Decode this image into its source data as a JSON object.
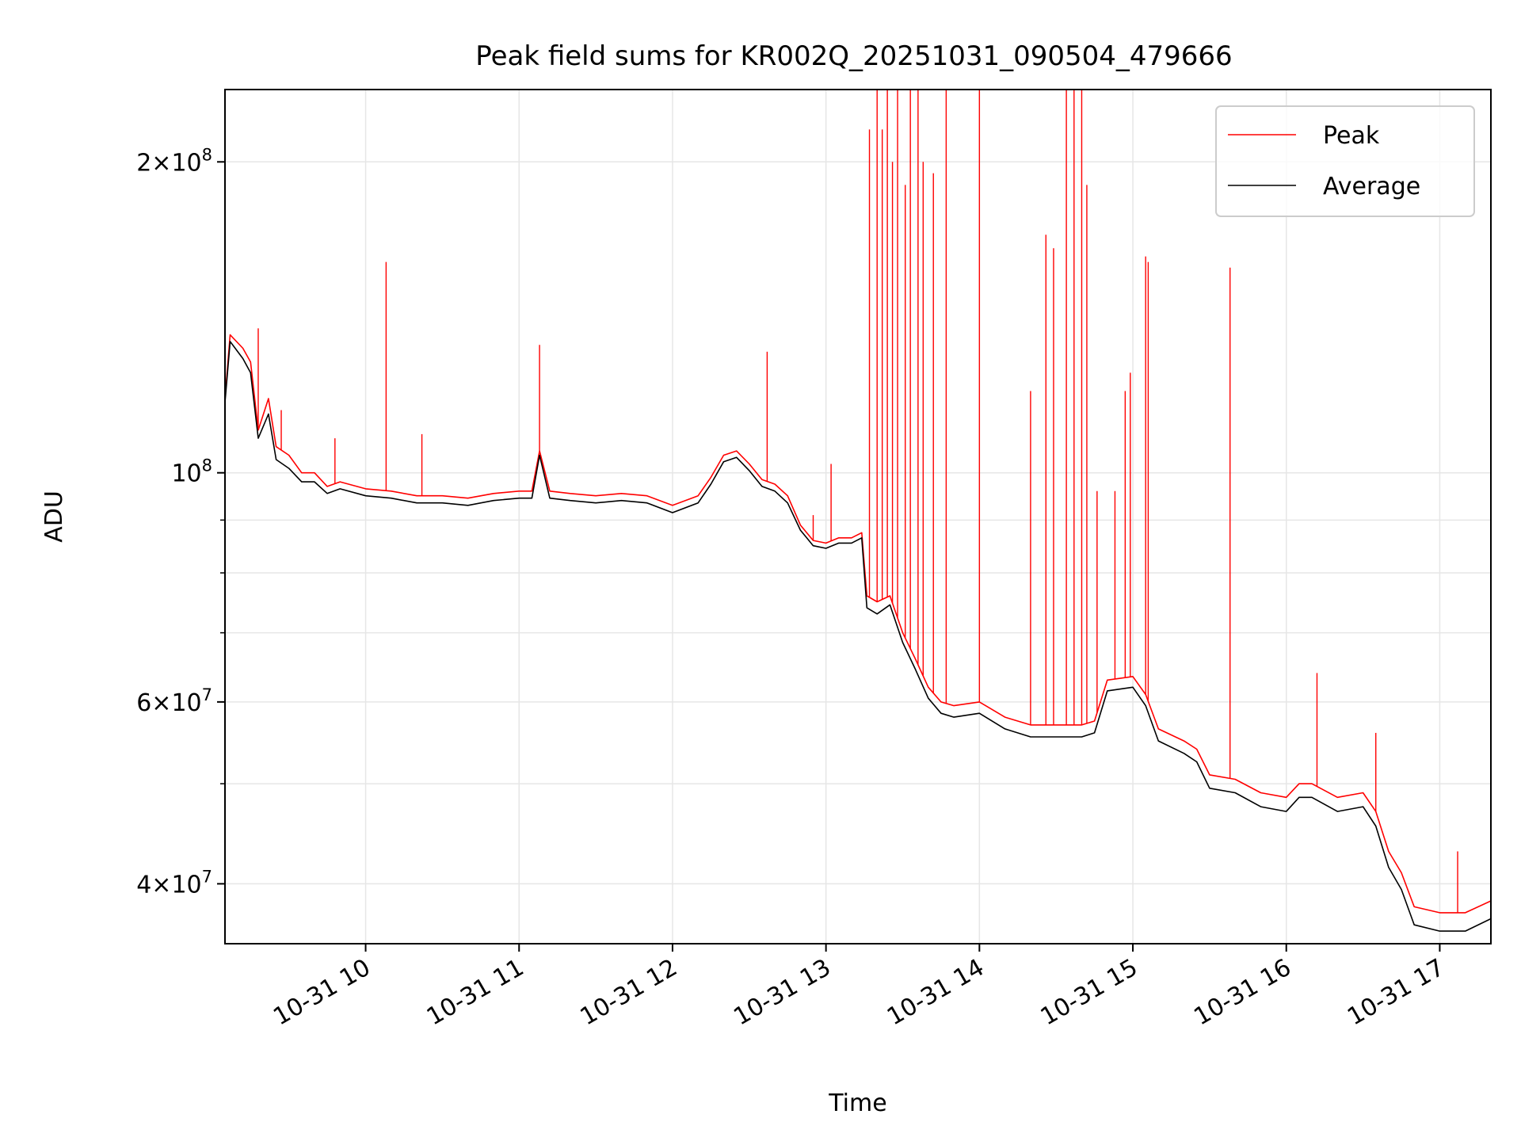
{
  "chart_data": {
    "type": "line",
    "title": "Peak field sums for KR002Q_20251031_090504_479666",
    "xlabel": "Time",
    "ylabel": "ADU",
    "yscale": "log",
    "xlim": [
      "2025-10-31 09:05",
      "2025-10-31 17:20"
    ],
    "ylim": [
      35000000,
      235000000
    ],
    "x_ticks": [
      {
        "t": "2025-10-31 10:00",
        "label": "10-31 10"
      },
      {
        "t": "2025-10-31 11:00",
        "label": "10-31 11"
      },
      {
        "t": "2025-10-31 12:00",
        "label": "10-31 12"
      },
      {
        "t": "2025-10-31 13:00",
        "label": "10-31 13"
      },
      {
        "t": "2025-10-31 14:00",
        "label": "10-31 14"
      },
      {
        "t": "2025-10-31 15:00",
        "label": "10-31 15"
      },
      {
        "t": "2025-10-31 16:00",
        "label": "10-31 16"
      },
      {
        "t": "2025-10-31 17:00",
        "label": "10-31 17"
      }
    ],
    "y_ticks": [
      {
        "value": 40000000,
        "base": "4",
        "times": "×",
        "exp_base": "10",
        "exp": "7"
      },
      {
        "value": 60000000,
        "base": "6",
        "times": "×",
        "exp_base": "10",
        "exp": "7"
      },
      {
        "value": 100000000,
        "base": "",
        "times": "",
        "exp_base": "10",
        "exp": "8"
      },
      {
        "value": 200000000,
        "base": "2",
        "times": "×",
        "exp_base": "10",
        "exp": "8"
      }
    ],
    "y_minor_ticks": [
      50000000,
      70000000,
      80000000,
      90000000
    ],
    "grid": true,
    "legend_position": "top-right",
    "series": [
      {
        "name": "Peak",
        "color": "#ff0000",
        "points": [
          [
            "2025-10-31 09:05",
            118000000
          ],
          [
            "2025-10-31 09:07",
            136000000
          ],
          [
            "2025-10-31 09:12",
            132000000
          ],
          [
            "2025-10-31 09:15",
            128000000
          ],
          [
            "2025-10-31 09:18",
            110000000
          ],
          [
            "2025-10-31 09:22",
            118000000
          ],
          [
            "2025-10-31 09:25",
            106000000
          ],
          [
            "2025-10-31 09:30",
            104000000
          ],
          [
            "2025-10-31 09:35",
            100000000
          ],
          [
            "2025-10-31 09:40",
            100000000
          ],
          [
            "2025-10-31 09:45",
            97000000
          ],
          [
            "2025-10-31 09:50",
            98000000
          ],
          [
            "2025-10-31 10:00",
            96500000
          ],
          [
            "2025-10-31 10:10",
            96000000
          ],
          [
            "2025-10-31 10:20",
            95000000
          ],
          [
            "2025-10-31 10:30",
            95000000
          ],
          [
            "2025-10-31 10:40",
            94500000
          ],
          [
            "2025-10-31 10:50",
            95500000
          ],
          [
            "2025-10-31 11:00",
            96000000
          ],
          [
            "2025-10-31 11:05",
            96000000
          ],
          [
            "2025-10-31 11:08",
            105000000
          ],
          [
            "2025-10-31 11:12",
            96000000
          ],
          [
            "2025-10-31 11:20",
            95500000
          ],
          [
            "2025-10-31 11:30",
            95000000
          ],
          [
            "2025-10-31 11:40",
            95500000
          ],
          [
            "2025-10-31 11:50",
            95000000
          ],
          [
            "2025-10-31 12:00",
            93000000
          ],
          [
            "2025-10-31 12:10",
            95000000
          ],
          [
            "2025-10-31 12:15",
            99000000
          ],
          [
            "2025-10-31 12:20",
            104000000
          ],
          [
            "2025-10-31 12:25",
            105000000
          ],
          [
            "2025-10-31 12:30",
            102000000
          ],
          [
            "2025-10-31 12:35",
            98500000
          ],
          [
            "2025-10-31 12:40",
            97500000
          ],
          [
            "2025-10-31 12:45",
            95000000
          ],
          [
            "2025-10-31 12:50",
            89000000
          ],
          [
            "2025-10-31 12:55",
            86000000
          ],
          [
            "2025-10-31 13:00",
            85500000
          ],
          [
            "2025-10-31 13:05",
            86500000
          ],
          [
            "2025-10-31 13:10",
            86500000
          ],
          [
            "2025-10-31 13:14",
            87500000
          ],
          [
            "2025-10-31 13:16",
            76000000
          ],
          [
            "2025-10-31 13:20",
            75000000
          ],
          [
            "2025-10-31 13:25",
            76000000
          ],
          [
            "2025-10-31 13:30",
            70000000
          ],
          [
            "2025-10-31 13:35",
            66000000
          ],
          [
            "2025-10-31 13:40",
            62000000
          ],
          [
            "2025-10-31 13:45",
            60000000
          ],
          [
            "2025-10-31 13:50",
            59500000
          ],
          [
            "2025-10-31 14:00",
            60000000
          ],
          [
            "2025-10-31 14:10",
            58000000
          ],
          [
            "2025-10-31 14:20",
            57000000
          ],
          [
            "2025-10-31 14:30",
            57000000
          ],
          [
            "2025-10-31 14:40",
            57000000
          ],
          [
            "2025-10-31 14:45",
            57500000
          ],
          [
            "2025-10-31 14:50",
            63000000
          ],
          [
            "2025-10-31 15:00",
            63500000
          ],
          [
            "2025-10-31 15:05",
            61000000
          ],
          [
            "2025-10-31 15:10",
            56500000
          ],
          [
            "2025-10-31 15:20",
            55000000
          ],
          [
            "2025-10-31 15:25",
            54000000
          ],
          [
            "2025-10-31 15:30",
            51000000
          ],
          [
            "2025-10-31 15:40",
            50500000
          ],
          [
            "2025-10-31 15:50",
            49000000
          ],
          [
            "2025-10-31 16:00",
            48500000
          ],
          [
            "2025-10-31 16:05",
            50000000
          ],
          [
            "2025-10-31 16:10",
            50000000
          ],
          [
            "2025-10-31 16:20",
            48500000
          ],
          [
            "2025-10-31 16:30",
            49000000
          ],
          [
            "2025-10-31 16:35",
            47000000
          ],
          [
            "2025-10-31 16:40",
            43000000
          ],
          [
            "2025-10-31 16:45",
            41000000
          ],
          [
            "2025-10-31 16:50",
            38000000
          ],
          [
            "2025-10-31 17:00",
            37500000
          ],
          [
            "2025-10-31 17:10",
            37500000
          ],
          [
            "2025-10-31 17:20",
            38500000
          ]
        ],
        "spikes": [
          [
            "2025-10-31 09:18",
            138000000
          ],
          [
            "2025-10-31 09:27",
            115000000
          ],
          [
            "2025-10-31 09:48",
            108000000
          ],
          [
            "2025-10-31 10:08",
            160000000
          ],
          [
            "2025-10-31 10:22",
            109000000
          ],
          [
            "2025-10-31 11:08",
            133000000
          ],
          [
            "2025-10-31 12:37",
            131000000
          ],
          [
            "2025-10-31 12:55",
            91000000
          ],
          [
            "2025-10-31 13:02",
            102000000
          ],
          [
            "2025-10-31 13:17",
            215000000
          ],
          [
            "2025-10-31 13:20",
            235000000
          ],
          [
            "2025-10-31 13:22",
            215000000
          ],
          [
            "2025-10-31 13:24",
            235000000
          ],
          [
            "2025-10-31 13:26",
            200000000
          ],
          [
            "2025-10-31 13:28",
            235000000
          ],
          [
            "2025-10-31 13:31",
            190000000
          ],
          [
            "2025-10-31 13:33",
            235000000
          ],
          [
            "2025-10-31 13:36",
            235000000
          ],
          [
            "2025-10-31 13:38",
            200000000
          ],
          [
            "2025-10-31 13:42",
            195000000
          ],
          [
            "2025-10-31 13:47",
            235000000
          ],
          [
            "2025-10-31 14:00",
            235000000
          ],
          [
            "2025-10-31 14:20",
            120000000
          ],
          [
            "2025-10-31 14:26",
            170000000
          ],
          [
            "2025-10-31 14:29",
            165000000
          ],
          [
            "2025-10-31 14:34",
            235000000
          ],
          [
            "2025-10-31 14:37",
            235000000
          ],
          [
            "2025-10-31 14:40",
            235000000
          ],
          [
            "2025-10-31 14:42",
            190000000
          ],
          [
            "2025-10-31 14:46",
            96000000
          ],
          [
            "2025-10-31 14:53",
            96000000
          ],
          [
            "2025-10-31 14:57",
            120000000
          ],
          [
            "2025-10-31 14:59",
            125000000
          ],
          [
            "2025-10-31 15:05",
            162000000
          ],
          [
            "2025-10-31 15:06",
            160000000
          ],
          [
            "2025-10-31 15:38",
            158000000
          ],
          [
            "2025-10-31 16:12",
            64000000
          ],
          [
            "2025-10-31 16:35",
            56000000
          ],
          [
            "2025-10-31 17:07",
            43000000
          ]
        ]
      },
      {
        "name": "Average",
        "color": "#000000",
        "points": [
          [
            "2025-10-31 09:05",
            117000000
          ],
          [
            "2025-10-31 09:07",
            134000000
          ],
          [
            "2025-10-31 09:12",
            129000000
          ],
          [
            "2025-10-31 09:15",
            125000000
          ],
          [
            "2025-10-31 09:18",
            108000000
          ],
          [
            "2025-10-31 09:22",
            114000000
          ],
          [
            "2025-10-31 09:25",
            103000000
          ],
          [
            "2025-10-31 09:30",
            101000000
          ],
          [
            "2025-10-31 09:35",
            98000000
          ],
          [
            "2025-10-31 09:40",
            98000000
          ],
          [
            "2025-10-31 09:45",
            95500000
          ],
          [
            "2025-10-31 09:50",
            96500000
          ],
          [
            "2025-10-31 10:00",
            95000000
          ],
          [
            "2025-10-31 10:10",
            94500000
          ],
          [
            "2025-10-31 10:20",
            93500000
          ],
          [
            "2025-10-31 10:30",
            93500000
          ],
          [
            "2025-10-31 10:40",
            93000000
          ],
          [
            "2025-10-31 10:50",
            94000000
          ],
          [
            "2025-10-31 11:00",
            94500000
          ],
          [
            "2025-10-31 11:05",
            94500000
          ],
          [
            "2025-10-31 11:08",
            104000000
          ],
          [
            "2025-10-31 11:12",
            94500000
          ],
          [
            "2025-10-31 11:20",
            94000000
          ],
          [
            "2025-10-31 11:30",
            93500000
          ],
          [
            "2025-10-31 11:40",
            94000000
          ],
          [
            "2025-10-31 11:50",
            93500000
          ],
          [
            "2025-10-31 12:00",
            91500000
          ],
          [
            "2025-10-31 12:10",
            93500000
          ],
          [
            "2025-10-31 12:15",
            97500000
          ],
          [
            "2025-10-31 12:20",
            102500000
          ],
          [
            "2025-10-31 12:25",
            103500000
          ],
          [
            "2025-10-31 12:30",
            100500000
          ],
          [
            "2025-10-31 12:35",
            97000000
          ],
          [
            "2025-10-31 12:40",
            96000000
          ],
          [
            "2025-10-31 12:45",
            93500000
          ],
          [
            "2025-10-31 12:50",
            88000000
          ],
          [
            "2025-10-31 12:55",
            85000000
          ],
          [
            "2025-10-31 13:00",
            84500000
          ],
          [
            "2025-10-31 13:05",
            85500000
          ],
          [
            "2025-10-31 13:10",
            85500000
          ],
          [
            "2025-10-31 13:14",
            86500000
          ],
          [
            "2025-10-31 13:16",
            74000000
          ],
          [
            "2025-10-31 13:20",
            73000000
          ],
          [
            "2025-10-31 13:25",
            74500000
          ],
          [
            "2025-10-31 13:30",
            68500000
          ],
          [
            "2025-10-31 13:35",
            64500000
          ],
          [
            "2025-10-31 13:40",
            60500000
          ],
          [
            "2025-10-31 13:45",
            58500000
          ],
          [
            "2025-10-31 13:50",
            58000000
          ],
          [
            "2025-10-31 14:00",
            58500000
          ],
          [
            "2025-10-31 14:10",
            56500000
          ],
          [
            "2025-10-31 14:20",
            55500000
          ],
          [
            "2025-10-31 14:30",
            55500000
          ],
          [
            "2025-10-31 14:40",
            55500000
          ],
          [
            "2025-10-31 14:45",
            56000000
          ],
          [
            "2025-10-31 14:50",
            61500000
          ],
          [
            "2025-10-31 15:00",
            62000000
          ],
          [
            "2025-10-31 15:05",
            59500000
          ],
          [
            "2025-10-31 15:10",
            55000000
          ],
          [
            "2025-10-31 15:20",
            53500000
          ],
          [
            "2025-10-31 15:25",
            52500000
          ],
          [
            "2025-10-31 15:30",
            49500000
          ],
          [
            "2025-10-31 15:40",
            49000000
          ],
          [
            "2025-10-31 15:50",
            47500000
          ],
          [
            "2025-10-31 16:00",
            47000000
          ],
          [
            "2025-10-31 16:05",
            48500000
          ],
          [
            "2025-10-31 16:10",
            48500000
          ],
          [
            "2025-10-31 16:20",
            47000000
          ],
          [
            "2025-10-31 16:30",
            47500000
          ],
          [
            "2025-10-31 16:35",
            45500000
          ],
          [
            "2025-10-31 16:40",
            41500000
          ],
          [
            "2025-10-31 16:45",
            39500000
          ],
          [
            "2025-10-31 16:50",
            36500000
          ],
          [
            "2025-10-31 17:00",
            36000000
          ],
          [
            "2025-10-31 17:10",
            36000000
          ],
          [
            "2025-10-31 17:20",
            37000000
          ]
        ]
      }
    ]
  }
}
